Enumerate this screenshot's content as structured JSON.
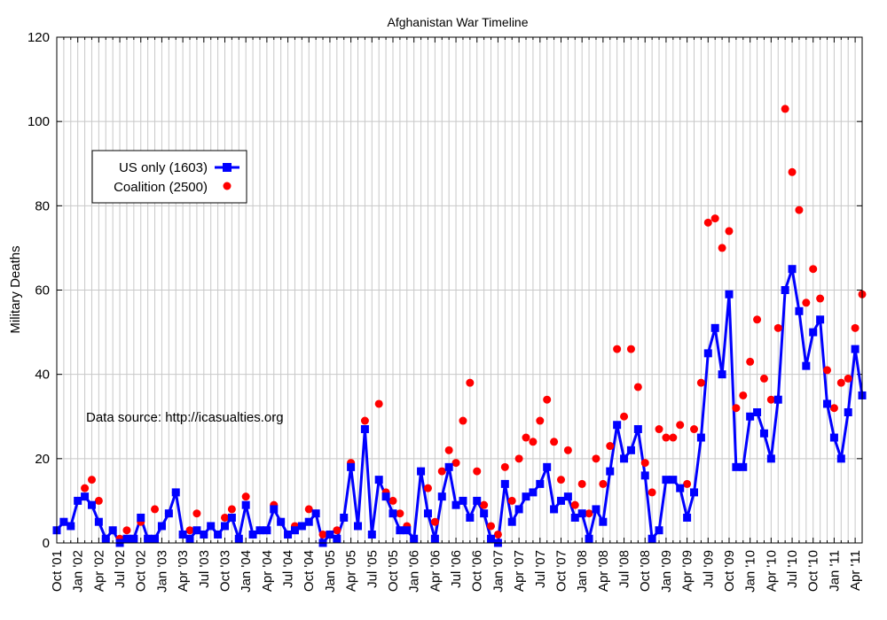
{
  "chart_data": {
    "type": "line",
    "title": "Afghanistan War Timeline",
    "ylabel": "Military Deaths",
    "xlabel": "",
    "ylim": [
      0,
      120
    ],
    "yticks": [
      0,
      20,
      40,
      60,
      80,
      100,
      120
    ],
    "grid": true,
    "legend_placement": "upper-left",
    "start_month": "Oct '01",
    "x_tick_labels": [
      "Oct '01",
      "Jan '02",
      "Apr '02",
      "Jul '02",
      "Oct '02",
      "Jan '03",
      "Apr '03",
      "Jul '03",
      "Oct '03",
      "Jan '04",
      "Apr '04",
      "Jul '04",
      "Oct '04",
      "Jan '05",
      "Apr '05",
      "Jul '05",
      "Oct '05",
      "Jan '06",
      "Apr '06",
      "Jul '06",
      "Oct '06",
      "Jan '07",
      "Apr '07",
      "Jul '07",
      "Oct '07",
      "Jan '08",
      "Apr '08",
      "Jul '08",
      "Oct '08",
      "Jan '09",
      "Apr '09",
      "Jul '09",
      "Oct '09",
      "Jan '10",
      "Apr '10",
      "Jul '10",
      "Oct '10",
      "Jan '11",
      "Apr '11"
    ],
    "annotation": "Data source: http://icasualties.org",
    "series": [
      {
        "name": "US only (1603)",
        "style": "line-square",
        "color": "#0000ff",
        "values": [
          3,
          5,
          4,
          10,
          11,
          9,
          5,
          1,
          3,
          0,
          1,
          1,
          6,
          1,
          1,
          4,
          7,
          12,
          2,
          1,
          3,
          2,
          4,
          2,
          4,
          6,
          1,
          9,
          2,
          3,
          3,
          8,
          5,
          2,
          3,
          4,
          5,
          7,
          0,
          2,
          1,
          6,
          18,
          4,
          27,
          2,
          15,
          11,
          7,
          3,
          3,
          1,
          17,
          7,
          1,
          11,
          18,
          9,
          10,
          6,
          10,
          7,
          1,
          0,
          14,
          5,
          8,
          11,
          12,
          14,
          18,
          8,
          10,
          11,
          6,
          7,
          1,
          8,
          5,
          17,
          28,
          20,
          22,
          27,
          16,
          1,
          3,
          15,
          15,
          13,
          6,
          12,
          25,
          45,
          51,
          40,
          59,
          18,
          18,
          30,
          31,
          26,
          20,
          34,
          60,
          65,
          55,
          42,
          50,
          53,
          33,
          25,
          20,
          31,
          46,
          35
        ]
      },
      {
        "name": "Coalition (2500)",
        "style": "dot",
        "color": "#ff0000",
        "values": [
          3,
          5,
          4,
          10,
          13,
          15,
          10,
          1,
          3,
          1,
          3,
          1,
          5,
          1,
          8,
          4,
          7,
          12,
          2,
          3,
          7,
          2,
          4,
          2,
          6,
          8,
          1,
          11,
          2,
          3,
          3,
          9,
          5,
          2,
          4,
          4,
          8,
          7,
          2,
          2,
          3,
          6,
          19,
          4,
          29,
          2,
          33,
          12,
          10,
          7,
          4,
          1,
          17,
          13,
          5,
          17,
          22,
          19,
          29,
          38,
          17,
          9,
          4,
          2,
          18,
          10,
          20,
          25,
          24,
          29,
          34,
          24,
          15,
          22,
          9,
          14,
          7,
          20,
          14,
          23,
          46,
          30,
          46,
          37,
          19,
          12,
          27,
          25,
          25,
          28,
          14,
          27,
          38,
          76,
          77,
          70,
          74,
          32,
          35,
          43,
          53,
          39,
          34,
          51,
          103,
          88,
          79,
          57,
          65,
          58,
          41,
          32,
          38,
          39,
          51,
          59
        ]
      }
    ]
  }
}
